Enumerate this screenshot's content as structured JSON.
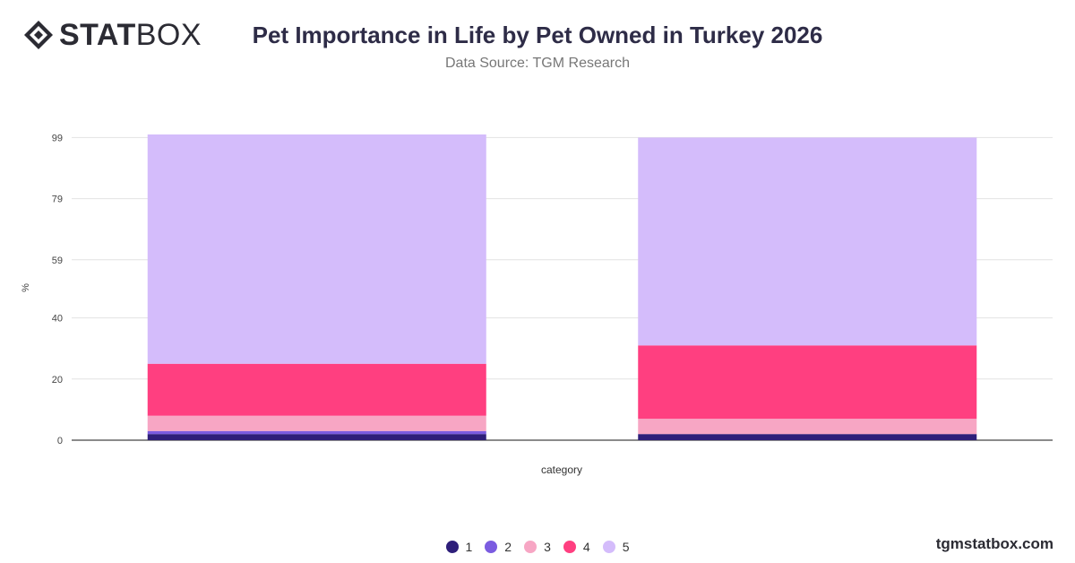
{
  "brand": {
    "logo_bold": "STAT",
    "logo_light": "BOX",
    "watermark": "tgmstatbox.com"
  },
  "chart_data": {
    "type": "bar",
    "stacked": true,
    "title": "Pet Importance in Life by Pet Owned in Turkey 2026",
    "subtitle": "Data Source: TGM Research",
    "xlabel": "category",
    "ylabel": "%",
    "ylim": [
      0,
      100
    ],
    "yticks": [
      0,
      20,
      40,
      59,
      79,
      99
    ],
    "grid": true,
    "legend_position": "bottom",
    "categories": [
      "",
      ""
    ],
    "series": [
      {
        "name": "1",
        "color": "#2e1f7a",
        "values": [
          2,
          2
        ]
      },
      {
        "name": "2",
        "color": "#7b5ce0",
        "values": [
          1,
          0
        ]
      },
      {
        "name": "3",
        "color": "#f7a6c4",
        "values": [
          5,
          5
        ]
      },
      {
        "name": "4",
        "color": "#ff3f80",
        "values": [
          17,
          24
        ]
      },
      {
        "name": "5",
        "color": "#d4bcfb",
        "values": [
          75,
          68
        ]
      }
    ]
  }
}
